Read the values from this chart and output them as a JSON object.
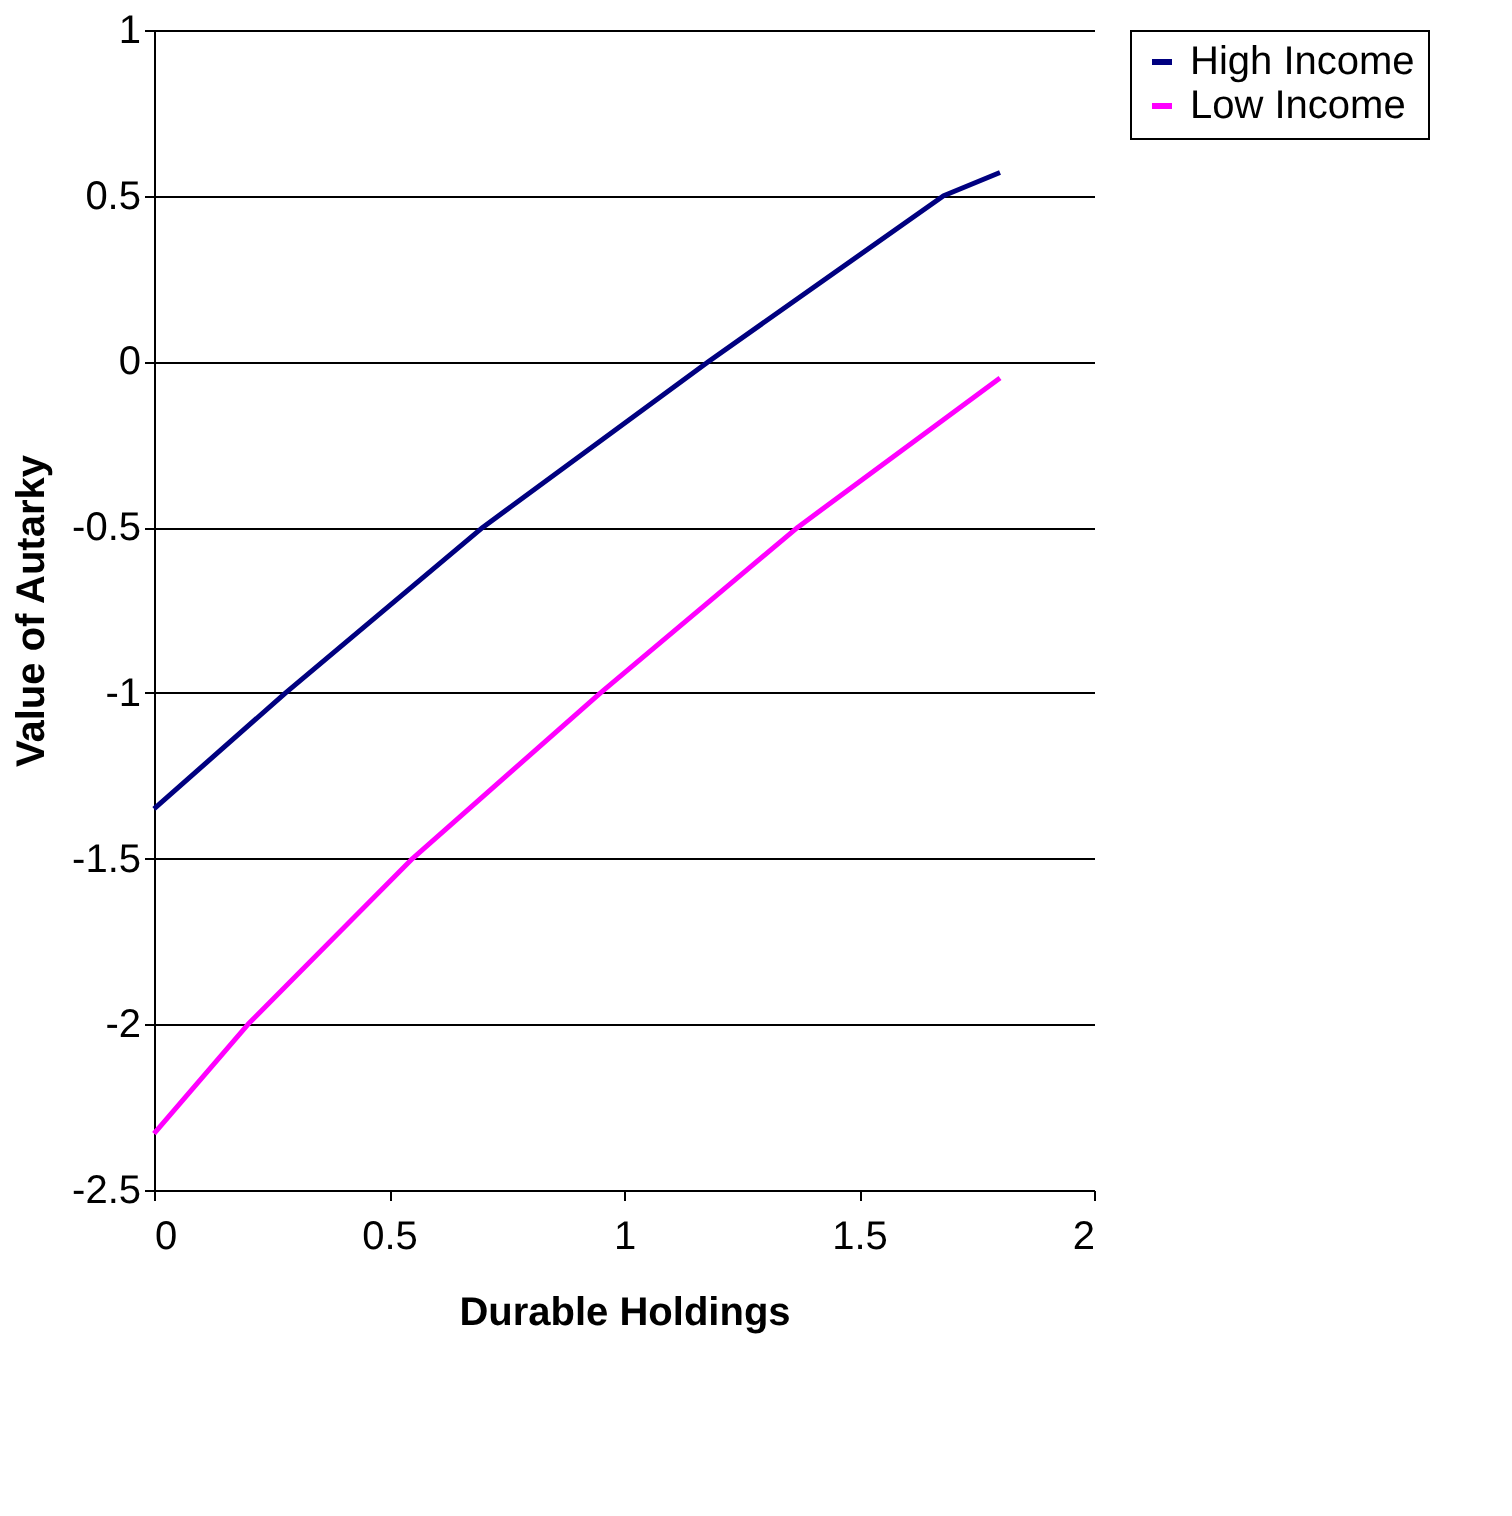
{
  "chart_data": {
    "type": "line",
    "xlabel": "Durable Holdings",
    "ylabel": "Value of Autarky",
    "series": [
      {
        "name": "High Income",
        "color": "#000080",
        "x": [
          0,
          0.28,
          0.7,
          1.18,
          1.68,
          1.8
        ],
        "values": [
          -1.35,
          -1.0,
          -0.5,
          0.0,
          0.5,
          0.57
        ]
      },
      {
        "name": "Low Income",
        "color": "#ff00ff",
        "x": [
          0,
          0.2,
          0.55,
          0.95,
          1.37,
          1.8
        ],
        "values": [
          -2.33,
          -2.0,
          -1.5,
          -1.0,
          -0.5,
          -0.05
        ]
      }
    ],
    "xlim": [
      0,
      2
    ],
    "xticks": [
      0,
      0.5,
      1,
      1.5,
      2
    ],
    "ylim": [
      -2.5,
      1
    ],
    "yticks": [
      -2.5,
      -2,
      -1.5,
      -1,
      -0.5,
      0,
      0.5,
      1
    ],
    "grid": "y",
    "legend": "right",
    "marker": "none",
    "line_style": "solid"
  }
}
